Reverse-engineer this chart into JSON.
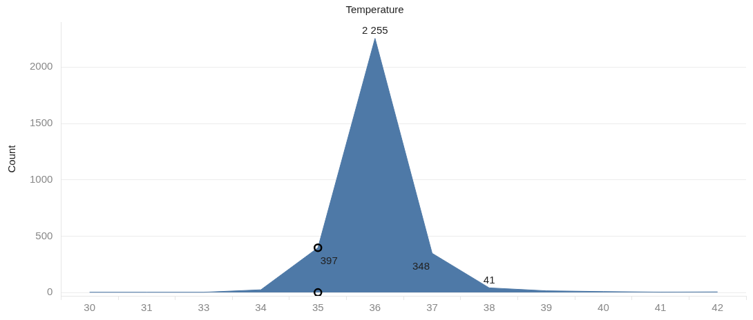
{
  "chart_data": {
    "type": "area",
    "title": "Temperature",
    "ylabel": "Count",
    "categories": [
      "30",
      "31",
      "33",
      "34",
      "35",
      "36",
      "37",
      "38",
      "39",
      "40",
      "41",
      "42"
    ],
    "series": [
      {
        "color": "#4e79a7",
        "values": [
          2,
          2,
          2,
          24,
          397,
          2255,
          348,
          41,
          15,
          8,
          3,
          5
        ],
        "value_labels": [
          null,
          null,
          null,
          null,
          "397",
          "2 255",
          "348",
          "41",
          null,
          null,
          null,
          null
        ]
      },
      {
        "type": "scatter",
        "color": "#000000",
        "marker": "circle",
        "x": [
          "35",
          "35"
        ],
        "values": [
          397,
          0
        ]
      }
    ],
    "ylim": [
      -30,
      2400
    ],
    "yticks": [
      0,
      500,
      1000,
      1500,
      2000
    ],
    "grid": "y",
    "legend": false
  }
}
